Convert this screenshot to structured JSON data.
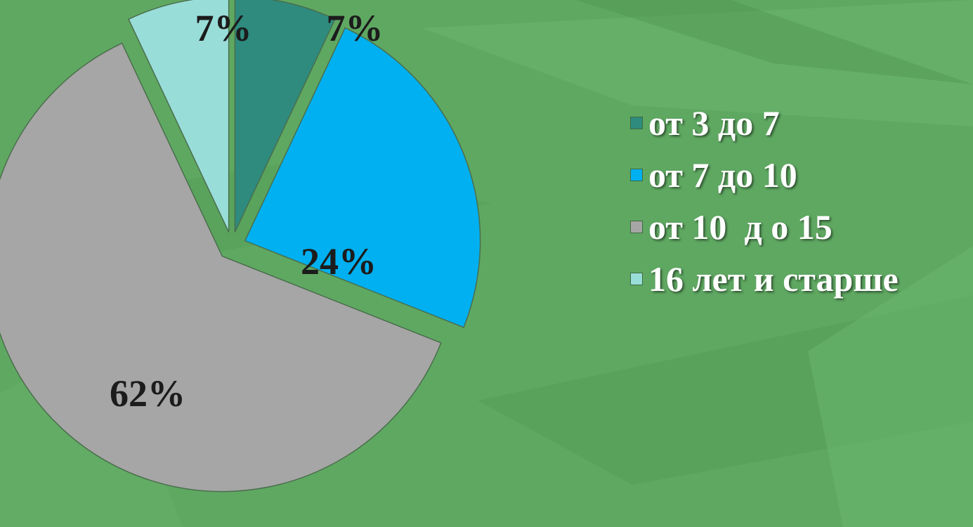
{
  "background_color": "#5fa862",
  "chart_data": {
    "type": "pie",
    "categories": [
      "от 3 до 7",
      "от 7 до 10",
      "от 10  д о 15",
      "16 лет и старше"
    ],
    "values": [
      7,
      24,
      62,
      7
    ],
    "labels": [
      "7%",
      "24%",
      "62%",
      "7%"
    ],
    "colors": [
      "#2e8b7e",
      "#00b0f0",
      "#a6a6a6",
      "#99ddd9"
    ],
    "exploded": true,
    "legend_position": "right"
  }
}
